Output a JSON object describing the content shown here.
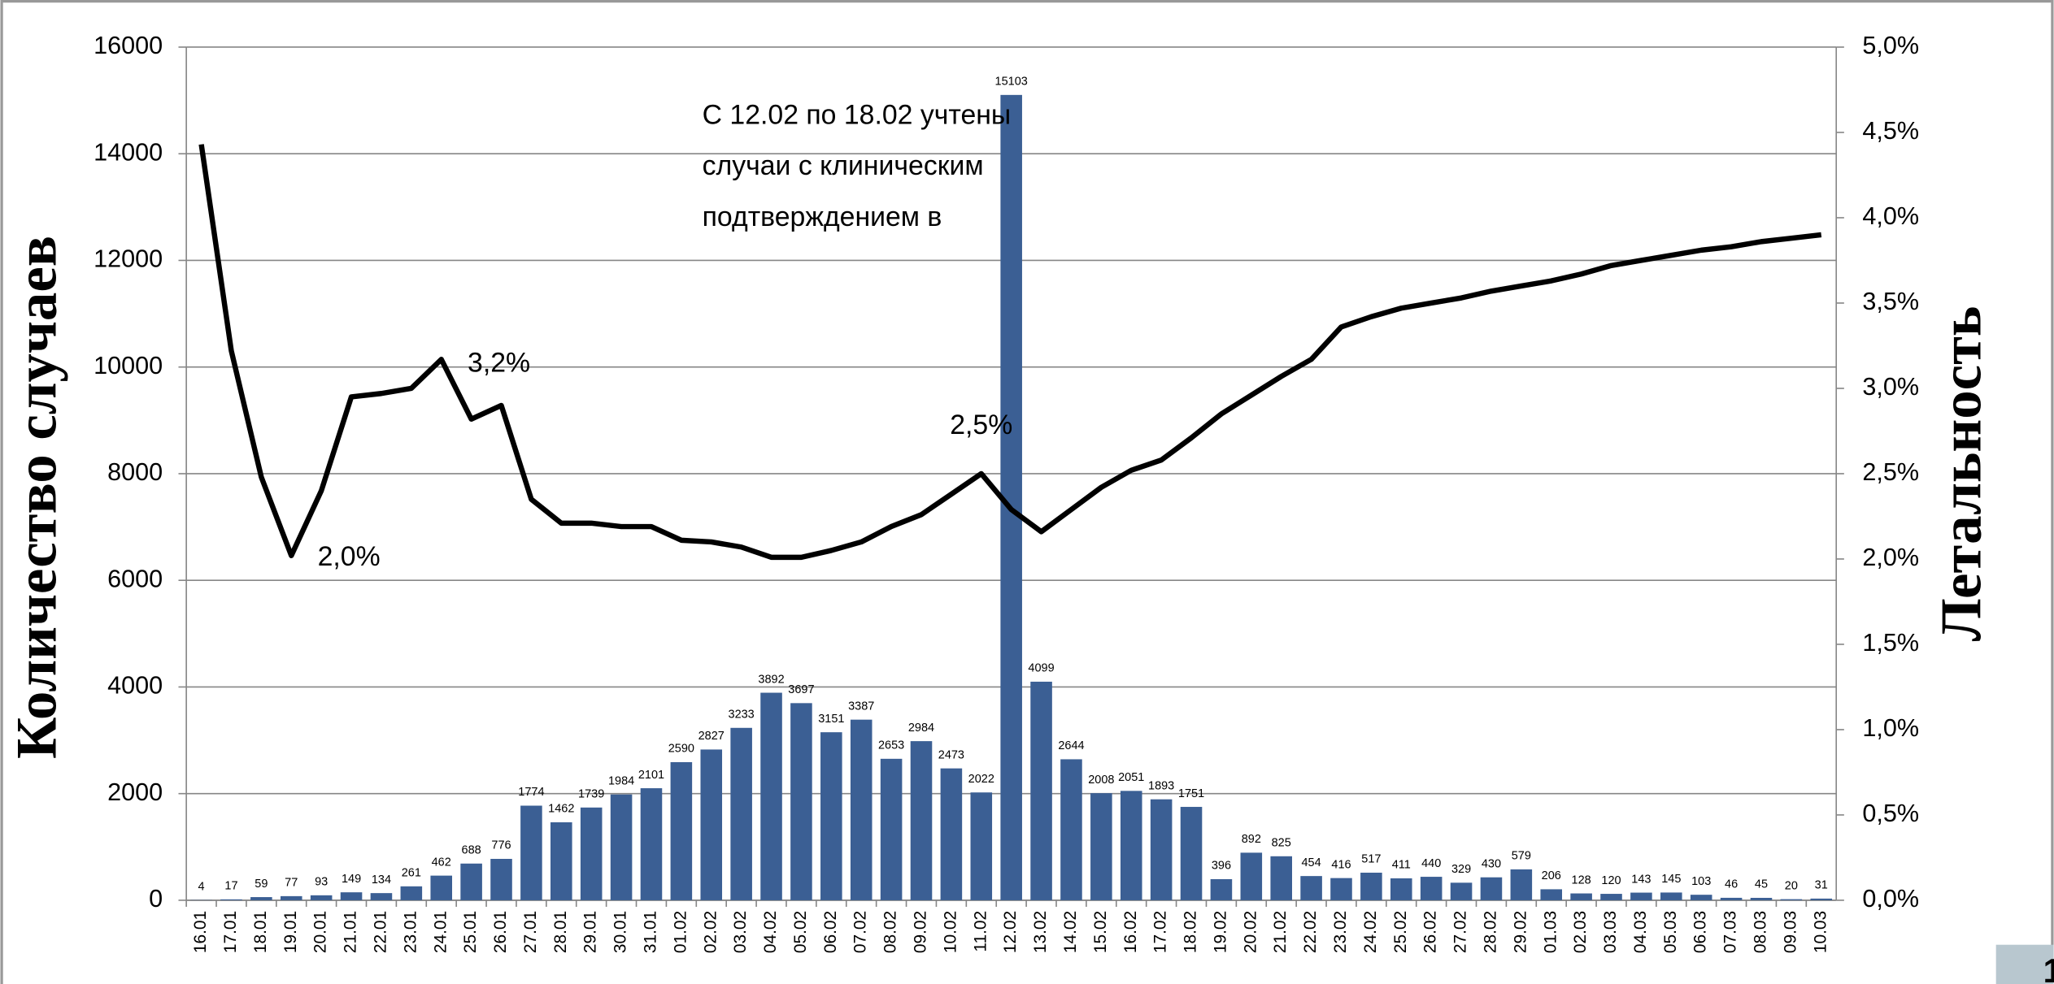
{
  "chart_data": {
    "type": "bar-line",
    "y_title": "Количество случаев",
    "y2_title": "Летальность",
    "annotation": [
      "С 12.02 по 18.02 учтены",
      "случаи с клиническим",
      "подтверждением в"
    ],
    "page_number": "1",
    "categories": [
      "16.01",
      "17.01",
      "18.01",
      "19.01",
      "20.01",
      "21.01",
      "22.01",
      "23.01",
      "24.01",
      "25.01",
      "26.01",
      "27.01",
      "28.01",
      "29.01",
      "30.01",
      "31.01",
      "01.02",
      "02.02",
      "03.02",
      "04.02",
      "05.02",
      "06.02",
      "07.02",
      "08.02",
      "09.02",
      "10.02",
      "11.02",
      "12.02",
      "13.02",
      "14.02",
      "15.02",
      "16.02",
      "17.02",
      "18.02",
      "19.02",
      "20.02",
      "21.02",
      "22.02",
      "23.02",
      "24.02",
      "25.02",
      "26.02",
      "27.02",
      "28.02",
      "29.02",
      "01.03",
      "02.03",
      "03.03",
      "04.03",
      "05.03",
      "06.03",
      "07.03",
      "08.03",
      "09.03",
      "10.03"
    ],
    "series": [
      {
        "type": "bar",
        "color": "#3b5f94",
        "values": [
          4,
          17,
          59,
          77,
          93,
          149,
          134,
          261,
          462,
          688,
          776,
          1774,
          1462,
          1739,
          1984,
          2101,
          2590,
          2827,
          3233,
          3892,
          3697,
          3151,
          3387,
          2653,
          2984,
          2473,
          2022,
          15103,
          4099,
          2644,
          2008,
          2051,
          1893,
          1751,
          396,
          892,
          825,
          454,
          416,
          517,
          411,
          440,
          329,
          430,
          579,
          206,
          128,
          120,
          143,
          145,
          103,
          46,
          45,
          20,
          31
        ]
      },
      {
        "type": "line",
        "axis": "y2",
        "color": "#000000",
        "values": [
          4.43,
          3.22,
          2.48,
          2.02,
          2.4,
          2.95,
          2.97,
          3.0,
          3.17,
          2.82,
          2.9,
          2.35,
          2.21,
          2.21,
          2.19,
          2.19,
          2.11,
          2.1,
          2.07,
          2.01,
          2.01,
          2.05,
          2.1,
          2.19,
          2.26,
          2.38,
          2.5,
          2.29,
          2.16,
          2.29,
          2.42,
          2.52,
          2.58,
          2.71,
          2.85,
          2.96,
          3.07,
          3.17,
          3.36,
          3.42,
          3.47,
          3.5,
          3.53,
          3.57,
          3.6,
          3.63,
          3.67,
          3.72,
          3.75,
          3.78,
          3.81,
          3.83,
          3.86,
          3.88,
          3.9
        ],
        "value_labels": [
          null,
          null,
          null,
          "2,0%",
          null,
          null,
          null,
          null,
          "3,2%",
          null,
          null,
          null,
          null,
          null,
          null,
          null,
          null,
          null,
          null,
          null,
          null,
          null,
          null,
          null,
          null,
          null,
          "2,5%",
          null,
          null,
          null,
          null,
          null,
          null,
          null,
          null,
          null,
          null,
          null,
          null,
          null,
          null,
          null,
          null,
          null,
          null,
          null,
          null,
          null,
          null,
          null,
          null,
          null,
          null,
          null,
          null
        ]
      }
    ],
    "ylim": [
      0,
      16000
    ],
    "yticks": [
      0,
      2000,
      4000,
      6000,
      8000,
      10000,
      12000,
      14000,
      16000
    ],
    "y2lim": [
      0,
      5
    ],
    "y2ticks": [
      {
        "value": 0,
        "label": "0,0%"
      },
      {
        "value": 0.5,
        "label": "0,5%"
      },
      {
        "value": 1,
        "label": "1,0%"
      },
      {
        "value": 1.5,
        "label": "1,5%"
      },
      {
        "value": 2,
        "label": "2,0%"
      },
      {
        "value": 2.5,
        "label": "2,5%"
      },
      {
        "value": 3,
        "label": "3,0%"
      },
      {
        "value": 3.5,
        "label": "3,5%"
      },
      {
        "value": 4,
        "label": "4,0%"
      },
      {
        "value": 4.5,
        "label": "4,5%"
      },
      {
        "value": 5,
        "label": "5,0%"
      }
    ],
    "grid": true
  }
}
